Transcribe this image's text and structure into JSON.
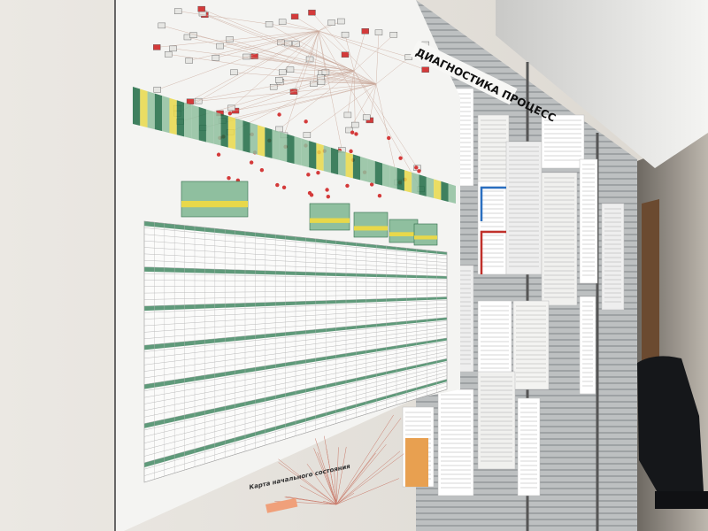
{
  "sign": {
    "text": "ДИАГНОСТИКА ПРОЦЕСС"
  },
  "poster": {
    "bottom_title": "Карта начального состояния"
  },
  "colors": {
    "wall": "#e6e2dc",
    "paper": "#f4f4f2",
    "table_header_green": "#5f9a7a",
    "dark_green": "#1f6b45",
    "highlight_yellow": "#e8d84a",
    "marker_red": "#d43a3a",
    "blinds": "#9ea3a6",
    "corridor": "#3a3836"
  }
}
